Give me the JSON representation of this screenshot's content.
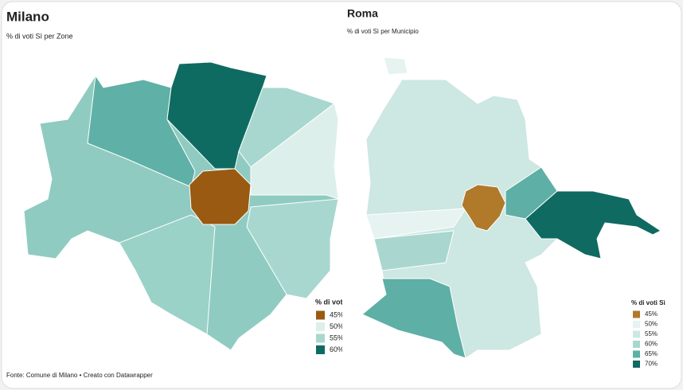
{
  "milano": {
    "title": "Milano",
    "subtitle": "% di voti Sì per Zone",
    "legend": {
      "title": "% di voti Sì",
      "items": [
        {
          "label": "45%",
          "color": "#9a5a12"
        },
        {
          "label": "50%",
          "color": "#dcefeb"
        },
        {
          "label": "55%",
          "color": "#a8d7cf"
        },
        {
          "label": "60%",
          "color": "#0e6b62"
        }
      ]
    },
    "source": "Fonte: Comune di Milano • Creato con Datawrapper"
  },
  "roma": {
    "title": "Roma",
    "subtitle": "% di voti Sì per Municipio",
    "legend": {
      "title": "% di voti Sì",
      "items": [
        {
          "label": "45%",
          "color": "#b07a2a"
        },
        {
          "label": "50%",
          "color": "#e6f3f0"
        },
        {
          "label": "55%",
          "color": "#cde7e2"
        },
        {
          "label": "60%",
          "color": "#a9d7d0"
        },
        {
          "label": "65%",
          "color": "#5eafa5"
        },
        {
          "label": "70%",
          "color": "#0f6a62"
        }
      ]
    }
  }
}
